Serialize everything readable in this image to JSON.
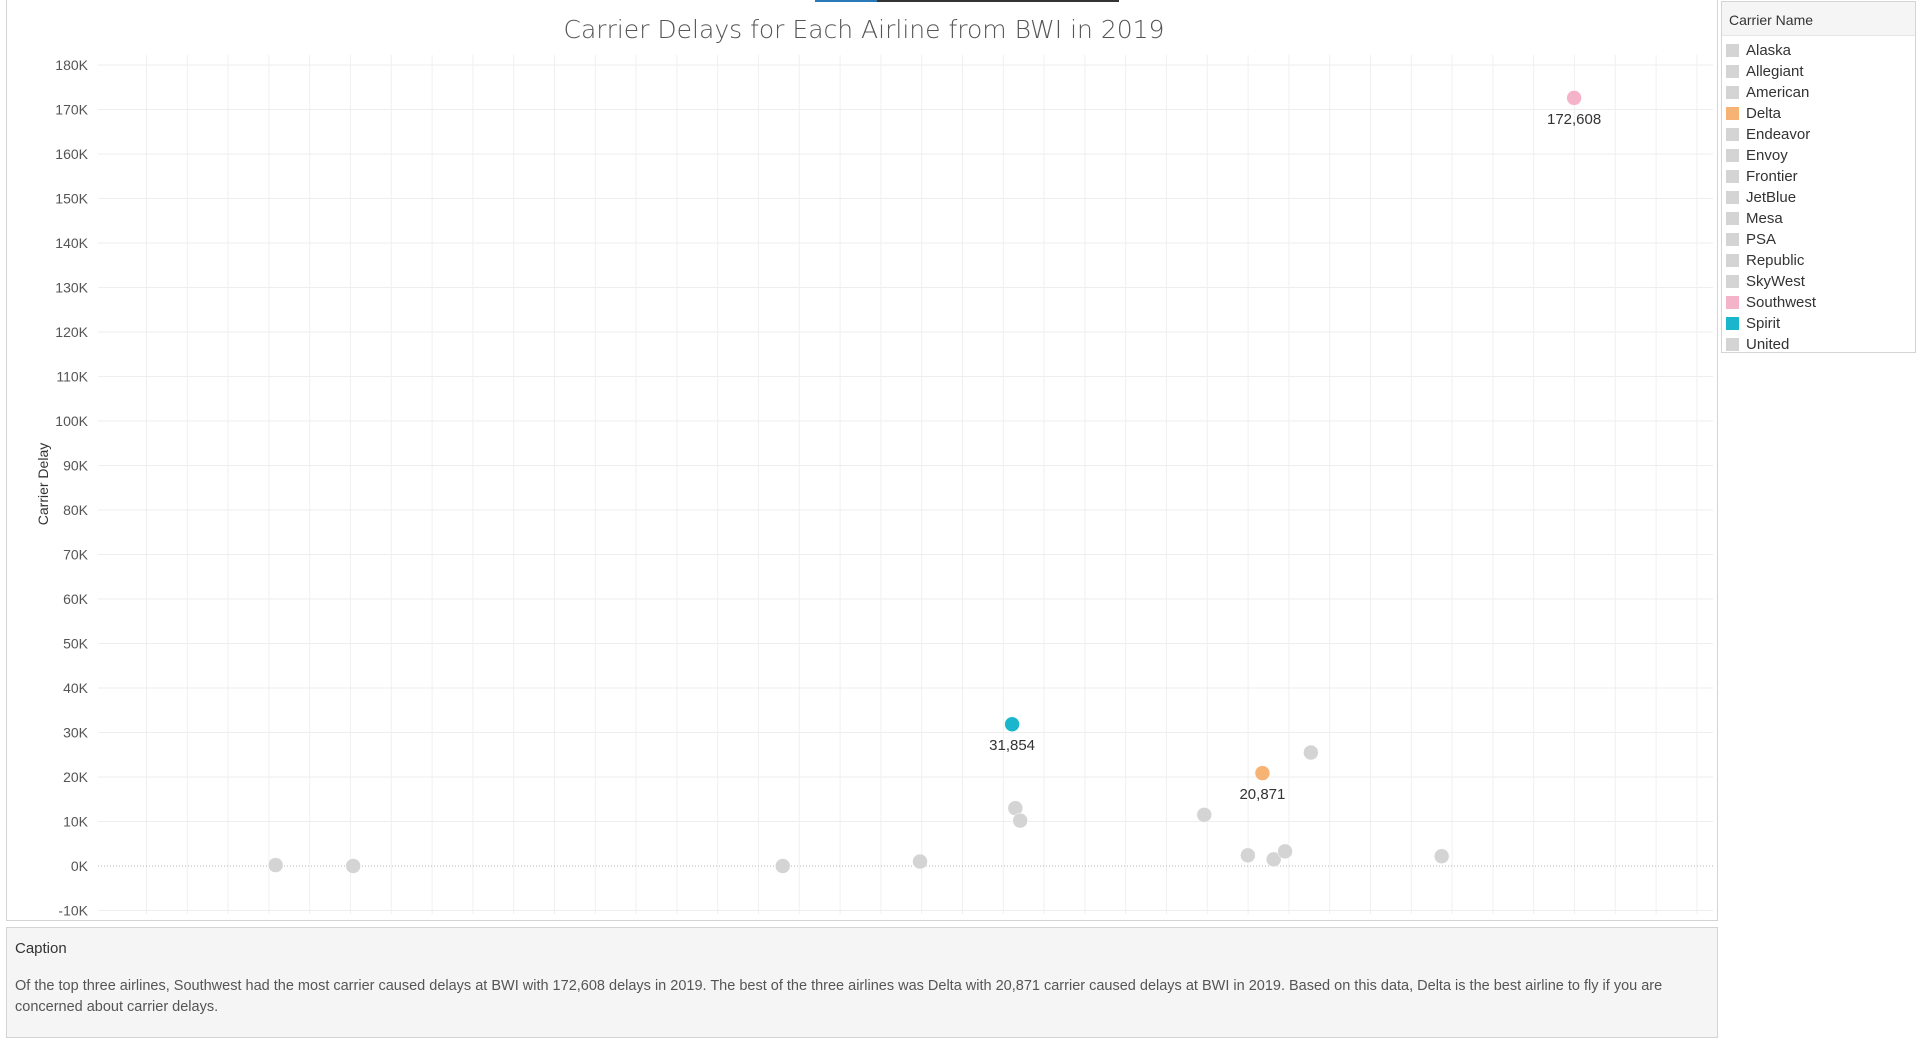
{
  "legend": {
    "title": "Carrier Name",
    "items": [
      {
        "label": "Alaska",
        "color": "#d4d4d4"
      },
      {
        "label": "Allegiant",
        "color": "#d4d4d4"
      },
      {
        "label": "American",
        "color": "#d4d4d4"
      },
      {
        "label": "Delta",
        "color": "#f7b374"
      },
      {
        "label": "Endeavor",
        "color": "#d4d4d4"
      },
      {
        "label": "Envoy",
        "color": "#d4d4d4"
      },
      {
        "label": "Frontier",
        "color": "#d4d4d4"
      },
      {
        "label": "JetBlue",
        "color": "#d4d4d4"
      },
      {
        "label": "Mesa",
        "color": "#d4d4d4"
      },
      {
        "label": "PSA",
        "color": "#d4d4d4"
      },
      {
        "label": "Republic",
        "color": "#d4d4d4"
      },
      {
        "label": "SkyWest",
        "color": "#d4d4d4"
      },
      {
        "label": "Southwest",
        "color": "#f4b3c9"
      },
      {
        "label": "Spirit",
        "color": "#1ab7cc"
      },
      {
        "label": "United",
        "color": "#d4d4d4"
      }
    ]
  },
  "caption": {
    "title": "Caption",
    "text": "Of the top three airlines, Southwest had the most carrier caused delays at BWI with 172,608 delays in 2019. The best of the three airlines was Delta with 20,871 carrier caused delays at BWI in 2019. Based on this data, Delta is the best airline to fly if you are concerned about carrier delays."
  },
  "chart_data": {
    "type": "scatter",
    "title": "Carrier Delays for Each Airline from BWI in 2019",
    "xlabel": "",
    "ylabel": "Carrier Delay",
    "ylim": [
      -10000,
      185000
    ],
    "y_ticks": [
      -10000,
      0,
      10000,
      20000,
      30000,
      40000,
      50000,
      60000,
      70000,
      80000,
      90000,
      100000,
      110000,
      120000,
      130000,
      140000,
      150000,
      160000,
      170000,
      180000
    ],
    "y_tick_labels": [
      "-10K",
      "0K",
      "10K",
      "20K",
      "30K",
      "40K",
      "50K",
      "60K",
      "70K",
      "80K",
      "90K",
      "100K",
      "110K",
      "120K",
      "130K",
      "140K",
      "150K",
      "160K",
      "170K",
      "180K"
    ],
    "x_axis_labels_shown": false,
    "grid": true,
    "zero_line": true,
    "legend_position": "right",
    "points": [
      {
        "x": 0.11,
        "y": 200,
        "color": "#d4d4d4"
      },
      {
        "x": 0.158,
        "y": 0,
        "color": "#d4d4d4"
      },
      {
        "x": 0.424,
        "y": 0,
        "color": "#d4d4d4"
      },
      {
        "x": 0.509,
        "y": 1000,
        "color": "#d4d4d4"
      },
      {
        "x": 0.566,
        "y": 31854,
        "color": "#1ab7cc",
        "label": "31,854"
      },
      {
        "x": 0.568,
        "y": 13000,
        "color": "#d4d4d4"
      },
      {
        "x": 0.571,
        "y": 10200,
        "color": "#d4d4d4"
      },
      {
        "x": 0.685,
        "y": 11500,
        "color": "#d4d4d4"
      },
      {
        "x": 0.712,
        "y": 2400,
        "color": "#d4d4d4"
      },
      {
        "x": 0.721,
        "y": 20871,
        "color": "#f7b374",
        "label": "20,871"
      },
      {
        "x": 0.728,
        "y": 1500,
        "color": "#d4d4d4"
      },
      {
        "x": 0.735,
        "y": 3300,
        "color": "#d4d4d4"
      },
      {
        "x": 0.751,
        "y": 25500,
        "color": "#d4d4d4"
      },
      {
        "x": 0.832,
        "y": 2200,
        "color": "#d4d4d4"
      },
      {
        "x": 0.914,
        "y": 172608,
        "color": "#f4b3c9",
        "label": "172,608"
      }
    ]
  }
}
